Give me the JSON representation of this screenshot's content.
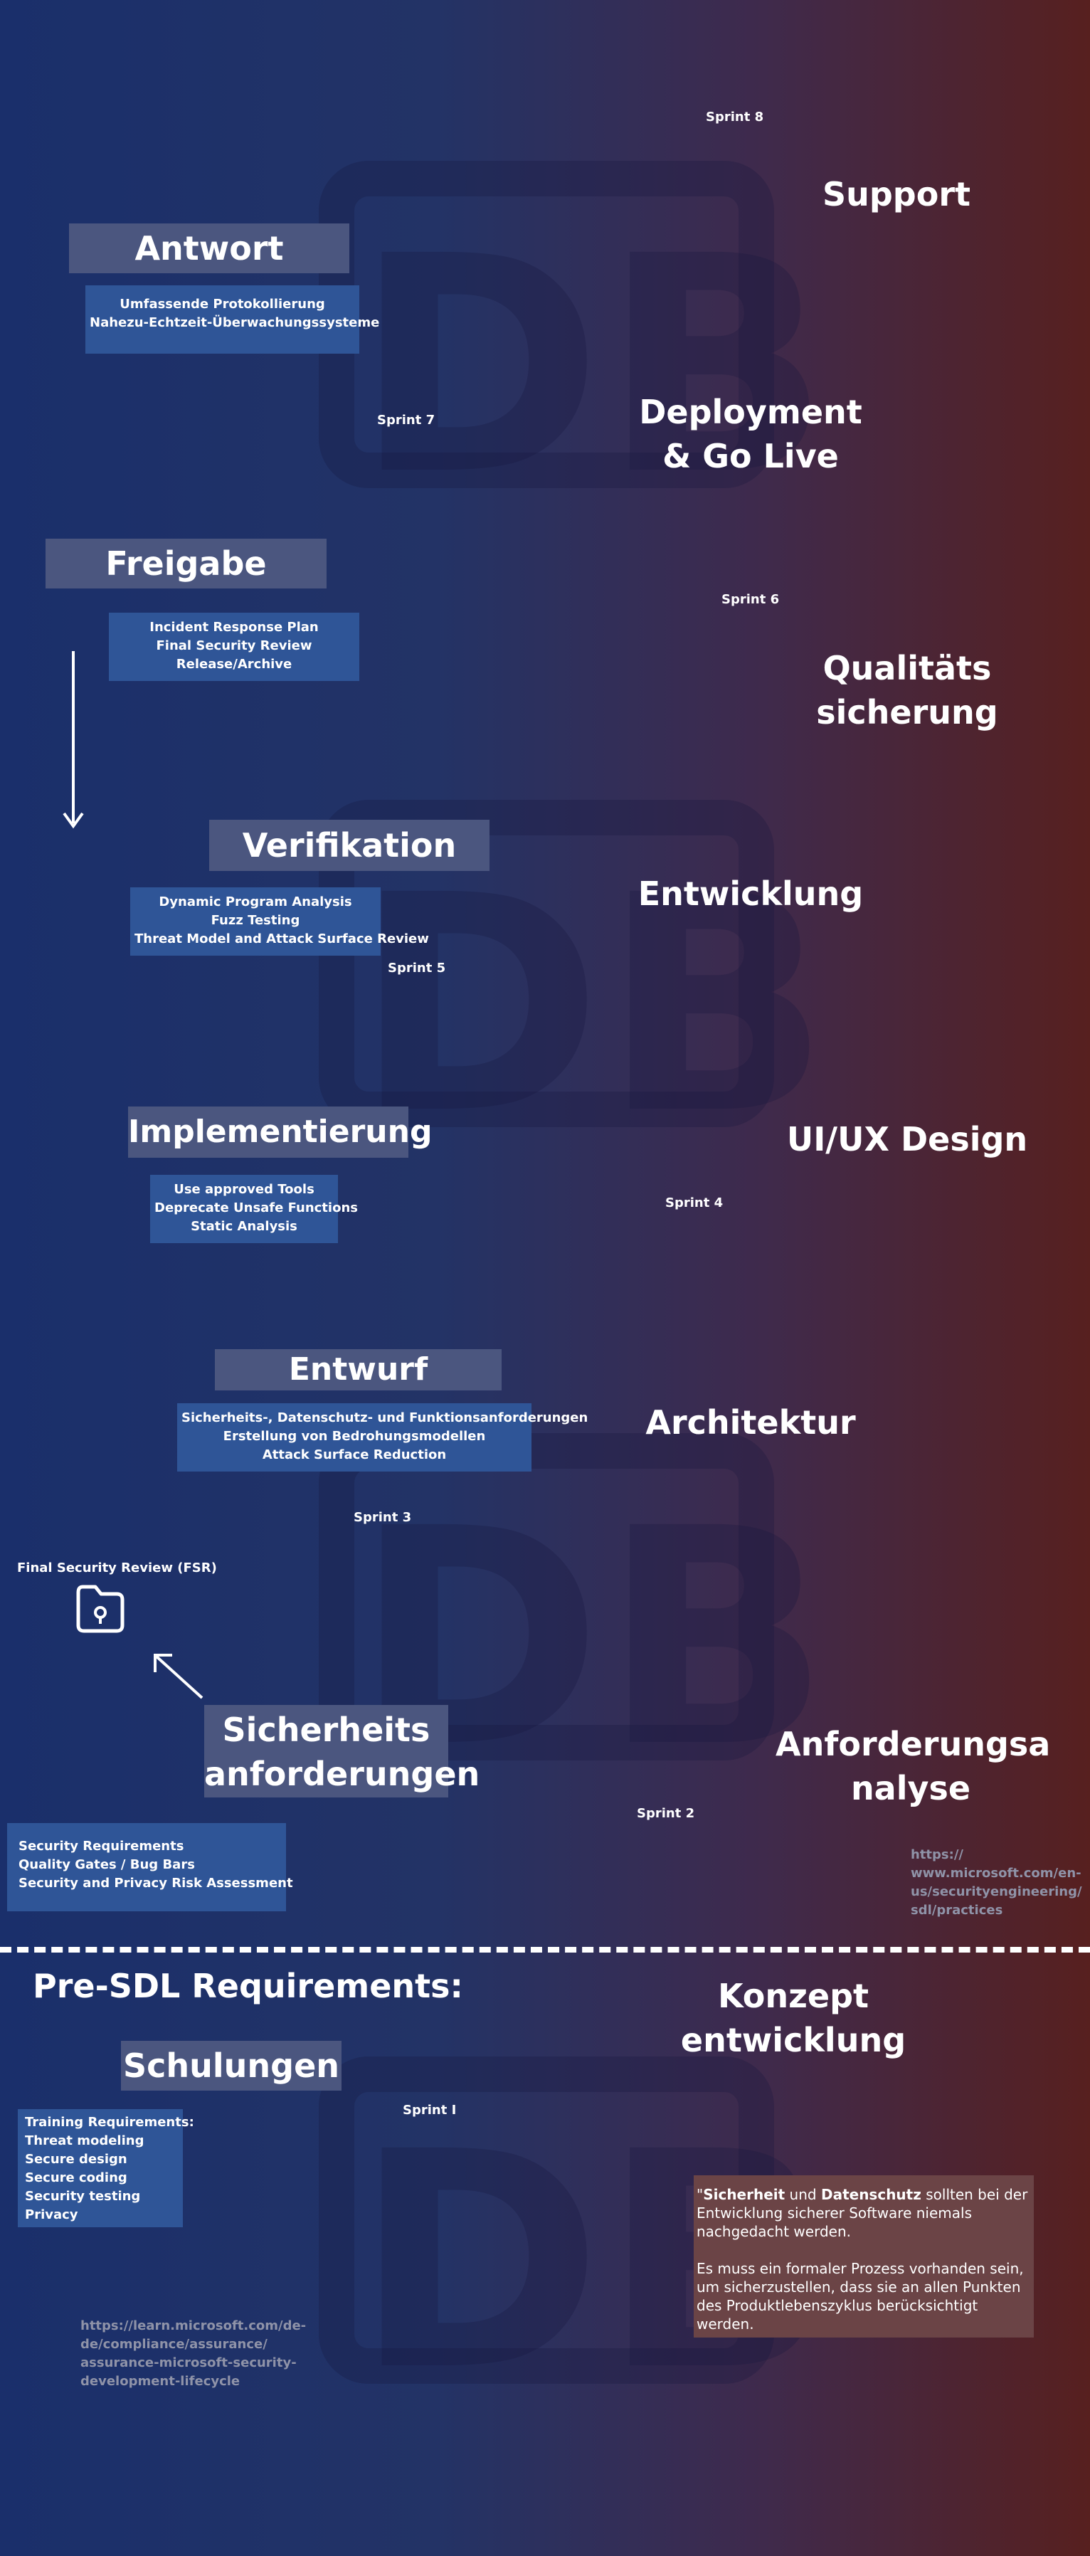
{
  "watermarks": [
    {
      "text": "DB"
    },
    {
      "text": "DB"
    },
    {
      "text": "DB"
    },
    {
      "text": "DB"
    }
  ],
  "stages": {
    "support": "Support",
    "deployment_line1": "Deployment",
    "deployment_line2": "& Go Live",
    "qs_line1": "Qualitäts",
    "qs_line2": "sicherung",
    "entwicklung": "Entwicklung",
    "uiux": "UI/UX Design",
    "architektur": "Architektur",
    "anforderung_line1": "Anforderungsa",
    "anforderung_line2": "nalyse",
    "konzept_line1": "Konzept",
    "konzept_line2": "entwicklung"
  },
  "sprints": {
    "s8": "Sprint 8",
    "s7": "Sprint 7",
    "s6": "Sprint 6",
    "s5": "Sprint 5",
    "s4": "Sprint 4",
    "s3": "Sprint 3",
    "s2": "Sprint 2",
    "s1": "Sprint I"
  },
  "phases": {
    "antwort": {
      "title": "Antwort",
      "items": [
        "Umfassende Protokollierung",
        "Nahezu-Echtzeit-Überwachungssysteme"
      ]
    },
    "freigabe": {
      "title": "Freigabe",
      "items": [
        "Incident Response Plan",
        "Final Security Review",
        "Release/Archive"
      ]
    },
    "verifikation": {
      "title": "Verifikation",
      "items": [
        "Dynamic Program Analysis",
        "Fuzz Testing",
        "Threat Model and Attack Surface Review"
      ]
    },
    "implementierung": {
      "title": "Implementierung",
      "items": [
        "Use approved Tools",
        "Deprecate Unsafe Functions",
        "Static Analysis"
      ]
    },
    "entwurf": {
      "title": "Entwurf",
      "items": [
        "Sicherheits-, Datenschutz- und Funktionsanforderungen",
        "Erstellung von Bedrohungsmodellen",
        "Attack Surface Reduction"
      ]
    },
    "sicherheit": {
      "title_line1": "Sicherheits",
      "title_line2": "anforderungen",
      "items": [
        "Security Requirements",
        "Quality Gates / Bug Bars",
        "Security and Privacy Risk Assessment"
      ]
    },
    "schulungen": {
      "title": "Schulungen",
      "items": [
        "Training Requirements:",
        "Threat modeling",
        "Secure design",
        "Secure coding",
        "Security testing",
        "Privacy"
      ]
    }
  },
  "fsr": {
    "label": "Final Security Review (FSR)",
    "icon": "folder-lock-icon"
  },
  "pre_sdl": "Pre-SDL Requirements:",
  "links": {
    "ms_sdl_line1": "https://",
    "ms_sdl_line2": "www.microsoft.com/en-",
    "ms_sdl_line3": "us/securityengineering/",
    "ms_sdl_line4": "sdl/practices",
    "learn_line1": "https://learn.microsoft.com/de-",
    "learn_line2": "de/compliance/assurance/",
    "learn_line3": "assurance-microsoft-security-",
    "learn_line4": "development-lifecycle"
  },
  "quote": {
    "open": "\"",
    "bold1": "Sicherheit",
    "mid1": " und ",
    "bold2": "Datenschutz",
    "rest1": " sollten bei der Entwicklung sicherer Software niemals nachgedacht werden.",
    "para2": "Es muss ein formaler Prozess vorhanden sein, um sicherzustellen, dass sie an allen Punkten des Produktlebenszyklus berücksichtigt werden."
  },
  "colors": {
    "phase_bg": "#4b567f",
    "detail_bg": "#2f5597",
    "quote_bg": "#6b4446",
    "link": "#8f93a8"
  }
}
